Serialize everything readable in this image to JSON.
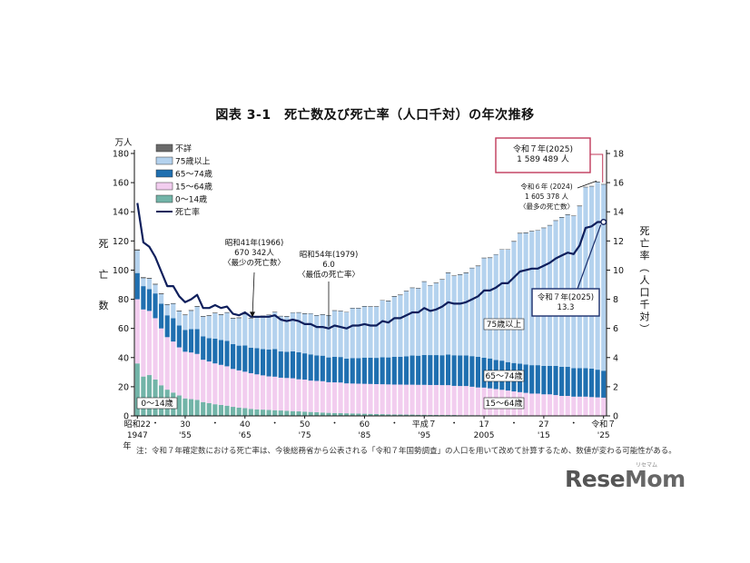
{
  "figure": {
    "title": "図表 3-1　死亡数及び死亡率（人口千対）の年次推移",
    "footnote": "注：令和７年確定数における死亡率は、今後総務省から公表される「令和７年国勢調査」の人口を用いて改めて計算するため、数値が変わる可能性がある。",
    "logo": {
      "main_a": "Rese",
      "main_b": "Mom",
      "kana": "リセマム"
    }
  },
  "colors": {
    "unknown": "#6a6a6a",
    "age75plus": "#b4d2ee",
    "age65_74": "#1f6fb0",
    "age15_64": "#f2cdef",
    "age0_14": "#72b4a8",
    "rate_line": "#0f1f5c",
    "callout_red": "#c0395a",
    "callout_navy": "#1a2e6b",
    "axis": "#111111"
  },
  "chart_data": {
    "type": "bar",
    "stacked": true,
    "years": [
      1947,
      1948,
      1949,
      1950,
      1951,
      1952,
      1953,
      1954,
      1955,
      1956,
      1957,
      1958,
      1959,
      1960,
      1961,
      1962,
      1963,
      1964,
      1965,
      1966,
      1967,
      1968,
      1969,
      1970,
      1971,
      1972,
      1973,
      1974,
      1975,
      1976,
      1977,
      1978,
      1979,
      1980,
      1981,
      1982,
      1983,
      1984,
      1985,
      1986,
      1987,
      1988,
      1989,
      1990,
      1991,
      1992,
      1993,
      1994,
      1995,
      1996,
      1997,
      1998,
      1999,
      2000,
      2001,
      2002,
      2003,
      2004,
      2005,
      2006,
      2007,
      2008,
      2009,
      2010,
      2011,
      2012,
      2013,
      2014,
      2015,
      2016,
      2017,
      2018,
      2019,
      2020,
      2021,
      2022,
      2023,
      2024,
      2025
    ],
    "left_axis": {
      "unit_label": "万人",
      "label": "死亡数",
      "ylim": [
        0,
        180
      ],
      "ticks": [
        0,
        20,
        40,
        60,
        80,
        100,
        120,
        140,
        160,
        180
      ]
    },
    "right_axis": {
      "label": "死亡率（人口千対）",
      "ylim": [
        0,
        18
      ],
      "ticks": [
        0,
        2,
        4,
        6,
        8,
        10,
        12,
        14,
        16,
        18
      ]
    },
    "x_tick_labels": [
      {
        "year": 1947,
        "era": "昭和22",
        "western": "1947"
      },
      {
        "year": 1955,
        "era": "30",
        "western": "'55"
      },
      {
        "year": 1965,
        "era": "40",
        "western": "'65"
      },
      {
        "year": 1975,
        "era": "50",
        "western": "'75"
      },
      {
        "year": 1985,
        "era": "60",
        "western": "'85"
      },
      {
        "year": 1995,
        "era": "平成７",
        "western": "'95"
      },
      {
        "year": 2005,
        "era": "17",
        "western": "2005"
      },
      {
        "year": 2015,
        "era": "27",
        "western": "'15"
      },
      {
        "year": 2025,
        "era": "令和７",
        "western": "'25"
      }
    ],
    "x_axis_suffix": "年",
    "series": [
      {
        "name": "不詳",
        "key": "unknown"
      },
      {
        "name": "75歳以上",
        "key": "age75plus"
      },
      {
        "name": "65～74歳",
        "key": "age65_74"
      },
      {
        "name": "15～64歳",
        "key": "age15_64"
      },
      {
        "name": "0～14歳",
        "key": "age0_14"
      },
      {
        "name": "死亡率",
        "key": "rate"
      }
    ],
    "total_deaths": [
      114.0,
      95.0,
      94.5,
      90.5,
      83.9,
      76.5,
      77.2,
      72.1,
      69.4,
      72.4,
      75.2,
      68.4,
      68.9,
      70.7,
      69.6,
      71.0,
      67.1,
      67.4,
      70.0,
      67.0,
      67.5,
      68.6,
      69.4,
      71.3,
      68.5,
      68.3,
      70.9,
      71.0,
      70.2,
      70.3,
      69.0,
      69.6,
      69.0,
      72.3,
      72.0,
      71.2,
      74.0,
      74.0,
      75.2,
      75.1,
      75.1,
      79.3,
      78.9,
      82.0,
      83.0,
      85.7,
      87.9,
      87.6,
      92.2,
      89.6,
      91.3,
      93.6,
      98.2,
      96.2,
      97.0,
      98.2,
      101.5,
      102.9,
      108.4,
      108.5,
      110.8,
      114.2,
      114.2,
      119.7,
      125.3,
      125.6,
      126.8,
      127.3,
      129.0,
      130.8,
      134.0,
      136.2,
      138.1,
      137.3,
      144.0,
      157.0,
      157.6,
      160.5,
      158.9
    ],
    "age0_14": [
      36.0,
      27.0,
      28.0,
      25.0,
      21.0,
      18.0,
      16.0,
      14.0,
      12.0,
      11.5,
      11.0,
      9.5,
      8.8,
      8.0,
      7.5,
      7.0,
      6.2,
      5.7,
      5.3,
      4.8,
      4.5,
      4.3,
      4.1,
      3.9,
      3.7,
      3.5,
      3.3,
      3.1,
      2.9,
      2.7,
      2.5,
      2.3,
      2.1,
      2.0,
      1.9,
      1.8,
      1.7,
      1.6,
      1.5,
      1.4,
      1.3,
      1.2,
      1.1,
      1.0,
      1.0,
      0.9,
      0.9,
      0.8,
      0.8,
      0.7,
      0.7,
      0.6,
      0.6,
      0.6,
      0.5,
      0.5,
      0.5,
      0.5,
      0.4,
      0.4,
      0.4,
      0.4,
      0.4,
      0.3,
      0.3,
      0.3,
      0.3,
      0.3,
      0.3,
      0.3,
      0.3,
      0.2,
      0.2,
      0.2,
      0.2,
      0.2,
      0.2,
      0.2,
      0.2
    ],
    "age15_64": [
      44.0,
      46.0,
      44.0,
      42.0,
      39.0,
      36.0,
      35.0,
      33.0,
      32.0,
      32.0,
      31.5,
      29.0,
      28.5,
      28.0,
      27.5,
      27.0,
      26.0,
      25.5,
      25.0,
      24.5,
      24.0,
      23.5,
      23.0,
      23.0,
      22.5,
      22.5,
      22.5,
      22.0,
      22.0,
      21.5,
      21.5,
      21.5,
      21.0,
      21.0,
      21.0,
      20.5,
      20.5,
      20.5,
      20.5,
      20.5,
      20.5,
      20.5,
      20.5,
      20.5,
      20.5,
      20.5,
      20.5,
      20.5,
      20.5,
      20.5,
      20.5,
      20.5,
      20.5,
      20.0,
      20.0,
      20.0,
      19.5,
      19.0,
      19.0,
      18.5,
      18.0,
      17.5,
      17.0,
      16.5,
      16.0,
      15.5,
      15.0,
      15.0,
      14.5,
      14.5,
      14.0,
      13.5,
      13.5,
      13.0,
      13.0,
      13.0,
      12.7,
      12.5,
      12.3
    ],
    "age65_74": [
      18.0,
      16.0,
      15.0,
      17.0,
      17.0,
      15.0,
      16.0,
      15.0,
      15.0,
      16.0,
      17.0,
      16.0,
      16.0,
      17.0,
      17.0,
      17.5,
      17.0,
      17.0,
      18.0,
      17.5,
      18.0,
      18.0,
      18.5,
      19.0,
      18.0,
      18.0,
      18.5,
      18.5,
      18.0,
      18.0,
      17.5,
      17.5,
      17.0,
      17.5,
      17.5,
      17.0,
      17.5,
      17.5,
      18.0,
      18.0,
      18.0,
      18.5,
      18.5,
      19.0,
      19.0,
      19.5,
      20.0,
      20.0,
      20.5,
      20.5,
      20.5,
      20.5,
      21.0,
      21.0,
      21.0,
      21.0,
      21.0,
      21.0,
      20.5,
      20.5,
      20.0,
      20.0,
      19.5,
      19.5,
      19.5,
      19.5,
      19.5,
      19.5,
      19.5,
      19.5,
      20.0,
      20.0,
      20.0,
      19.5,
      19.5,
      19.5,
      19.5,
      19.0,
      18.5
    ],
    "unknown": [
      0.5,
      0.4,
      0.3,
      0.3,
      0.3,
      0.2,
      0.2,
      0.2,
      0.2,
      0.2,
      0.2,
      0.2,
      0.2,
      0.2,
      0.2,
      0.2,
      0.2,
      0.2,
      0.2,
      0.1,
      0.1,
      0.1,
      0.1,
      0.1,
      0.1,
      0.1,
      0.1,
      0.1,
      0.1,
      0.1,
      0.1,
      0.1,
      0.1,
      0.1,
      0.1,
      0.1,
      0.1,
      0.1,
      0.1,
      0.1,
      0.1,
      0.1,
      0.1,
      0.1,
      0.1,
      0.1,
      0.1,
      0.1,
      0.1,
      0.1,
      0.1,
      0.1,
      0.1,
      0.1,
      0.1,
      0.1,
      0.1,
      0.1,
      0.1,
      0.1,
      0.1,
      0.1,
      0.1,
      0.1,
      0.1,
      0.1,
      0.1,
      0.1,
      0.1,
      0.1,
      0.1,
      0.1,
      0.1,
      0.1,
      0.1,
      0.1,
      0.1,
      0.1,
      0.1
    ],
    "death_rate": [
      14.6,
      11.9,
      11.6,
      10.9,
      9.9,
      8.9,
      8.9,
      8.2,
      7.8,
      8.0,
      8.3,
      7.4,
      7.4,
      7.6,
      7.4,
      7.5,
      7.0,
      6.9,
      7.1,
      6.8,
      6.8,
      6.8,
      6.8,
      6.9,
      6.6,
      6.5,
      6.6,
      6.5,
      6.3,
      6.3,
      6.1,
      6.1,
      6.0,
      6.2,
      6.1,
      6.0,
      6.2,
      6.2,
      6.3,
      6.2,
      6.2,
      6.5,
      6.4,
      6.7,
      6.7,
      6.9,
      7.1,
      7.1,
      7.4,
      7.2,
      7.3,
      7.5,
      7.8,
      7.7,
      7.7,
      7.8,
      8.0,
      8.2,
      8.6,
      8.6,
      8.8,
      9.1,
      9.1,
      9.5,
      9.9,
      10.0,
      10.1,
      10.1,
      10.3,
      10.5,
      10.8,
      11.0,
      11.2,
      11.1,
      11.7,
      12.9,
      13.0,
      13.3,
      13.3
    ],
    "annotations": {
      "a1966": {
        "label": "昭和41年(1966)",
        "value": "670 342人",
        "note": "〈最少の死亡数〉"
      },
      "a1979": {
        "label": "昭和54年(1979)",
        "value": "6.0",
        "note": "〈最低の死亡率〉"
      },
      "a2024": {
        "label": "令和６年 (2024)",
        "value": "1 605 378 人",
        "note": "〈最多の死亡数〉"
      },
      "a2025_count": {
        "label": "令和７年(2025)",
        "value": "1 589 489 人"
      },
      "a2025_rate": {
        "label": "令和７年(2025)",
        "value": "13.3"
      }
    },
    "in_chart_labels": {
      "age75plus": "75歳以上",
      "age65_74": "65～74歳",
      "age15_64": "15～64歳",
      "age0_14": "0～14歳"
    }
  }
}
